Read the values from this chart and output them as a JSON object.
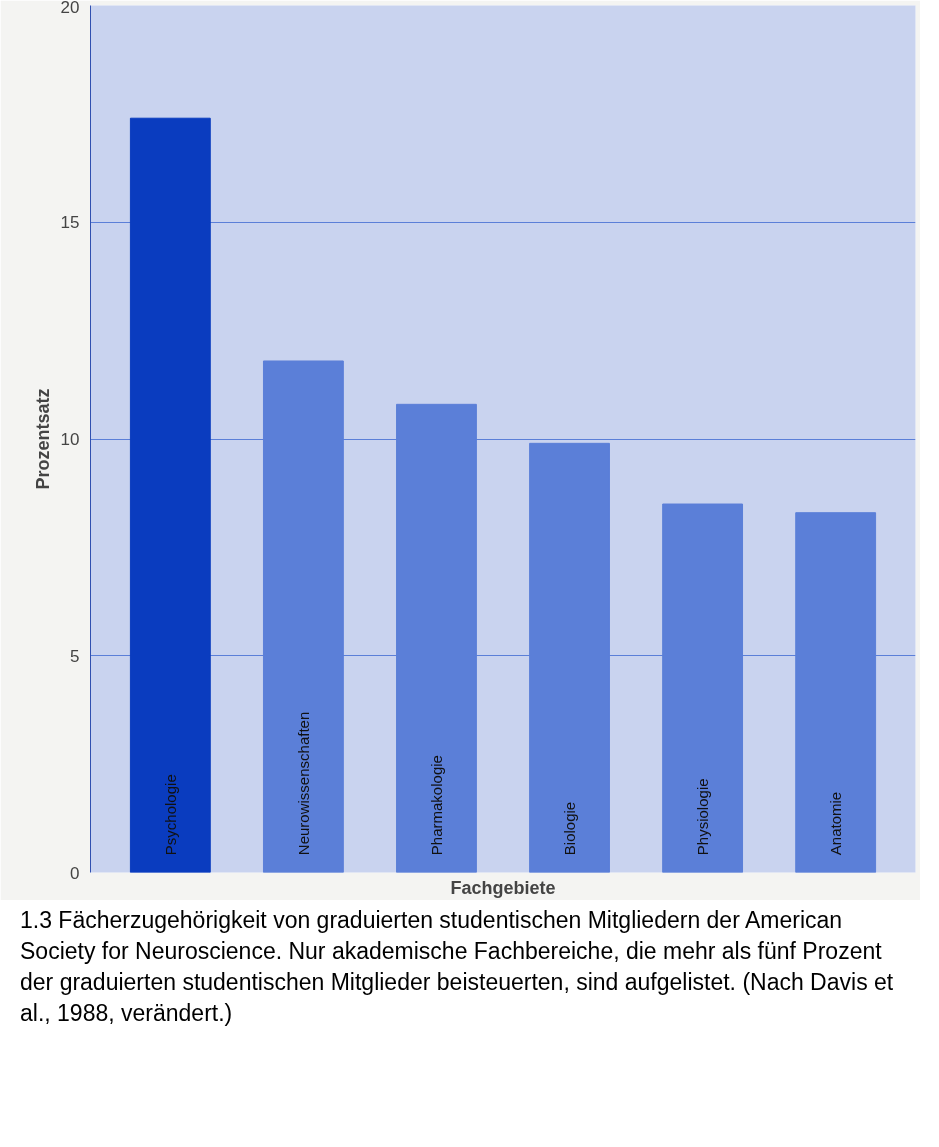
{
  "chart_data": {
    "type": "bar",
    "xlabel": "Fachgebiete",
    "ylabel": "Prozentsatz",
    "categories": [
      "Psychologie",
      "Neurowissenschaften",
      "Pharmakologie",
      "Biologie",
      "Physiologie",
      "Anatomie"
    ],
    "values": [
      17.4,
      11.8,
      10.8,
      9.9,
      8.5,
      8.3
    ],
    "colors": [
      "#0a3cbf",
      "#5b7fd8",
      "#5b7fd8",
      "#5b7fd8",
      "#5b7fd8",
      "#5b7fd8"
    ],
    "ylim": [
      0,
      20
    ],
    "yticks": [
      0,
      5,
      10,
      15,
      20
    ],
    "grid": "y",
    "annotations": [
      "1.3 Fächerzugehörigkeit von graduierten studentischen Mitgliedern der American Society for Neuroscience. Nur akademische Fachbereiche, die mehr als fünf Prozent der graduierten studentischen Mitglieder beisteuerten, sind aufgelistet. (Nach Davis et al., 1988, verändert.)"
    ]
  }
}
